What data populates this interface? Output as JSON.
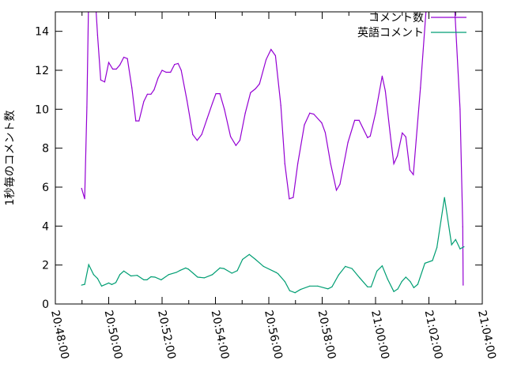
{
  "chart_data": {
    "type": "line",
    "title": "",
    "xlabel": "",
    "ylabel": "1秒毎のコメント数",
    "xlim": [
      "20:48:00",
      "21:04:00"
    ],
    "ylim": [
      0,
      15
    ],
    "x_ticks": [
      "20:48:00",
      "20:50:00",
      "20:52:00",
      "20:54:00",
      "20:56:00",
      "20:58:00",
      "21:00:00",
      "21:02:00",
      "21:04:00"
    ],
    "y_ticks": [
      0,
      2,
      4,
      6,
      8,
      10,
      12,
      14
    ],
    "grid": false,
    "legend_position": "top-right",
    "series": [
      {
        "name": "コメント数",
        "color": "#9400d3",
        "x": [
          "20:48:59",
          "20:49:06",
          "20:49:11",
          "20:49:15",
          "20:49:22",
          "20:49:29",
          "20:49:35",
          "20:49:42",
          "20:49:51",
          "20:50:00",
          "20:50:09",
          "20:50:17",
          "20:50:25",
          "20:50:34",
          "20:50:42",
          "20:50:52",
          "20:51:01",
          "20:51:08",
          "20:51:19",
          "20:51:27",
          "20:51:35",
          "20:51:42",
          "20:51:51",
          "20:52:00",
          "20:52:09",
          "20:52:19",
          "20:52:28",
          "20:52:36",
          "20:52:43",
          "20:52:56",
          "20:53:09",
          "20:53:19",
          "20:53:29",
          "20:53:41",
          "20:53:53",
          "20:54:01",
          "20:54:10",
          "20:54:20",
          "20:54:34",
          "20:54:46",
          "20:54:55",
          "20:55:07",
          "20:55:19",
          "20:55:30",
          "20:55:39",
          "20:55:54",
          "20:56:05",
          "20:56:15",
          "20:56:27",
          "20:56:36",
          "20:56:46",
          "20:56:55",
          "20:57:05",
          "20:57:20",
          "20:57:32",
          "20:57:41",
          "20:57:59",
          "20:58:07",
          "20:58:19",
          "20:58:32",
          "20:58:40",
          "20:58:58",
          "20:59:13",
          "20:59:23",
          "20:59:42",
          "20:59:48",
          "21:00:00",
          "21:00:15",
          "21:00:22",
          "21:00:33",
          "21:00:41",
          "21:00:49",
          "21:01:00",
          "21:01:08",
          "21:01:17",
          "21:01:25",
          "21:01:41",
          "21:01:54",
          "21:02:10",
          "21:02:40",
          "21:02:58",
          "21:03:10",
          "21:03:16",
          "21:03:17"
        ],
        "values": [
          5.94,
          5.4,
          10.1,
          16,
          17,
          16,
          13.8,
          11.5,
          11.4,
          12.4,
          12.06,
          12.06,
          12.27,
          12.67,
          12.6,
          11.1,
          9.4,
          9.4,
          10.4,
          10.77,
          10.77,
          11.0,
          11.6,
          12.0,
          11.9,
          11.9,
          12.3,
          12.35,
          12.0,
          10.45,
          8.7,
          8.4,
          8.7,
          9.5,
          10.3,
          10.8,
          10.8,
          10.0,
          8.6,
          8.14,
          8.4,
          9.8,
          10.85,
          11.05,
          11.3,
          12.55,
          13.07,
          12.75,
          10.2,
          7.2,
          5.4,
          5.47,
          7.2,
          9.2,
          9.8,
          9.75,
          9.3,
          8.8,
          7.2,
          5.84,
          6.15,
          8.3,
          9.43,
          9.43,
          8.54,
          8.62,
          9.8,
          11.7,
          10.93,
          8.7,
          7.2,
          7.6,
          8.78,
          8.58,
          6.88,
          6.64,
          11.1,
          15.2,
          18,
          18,
          15.2,
          10.0,
          3.97,
          0.97
        ]
      },
      {
        "name": "英語コメント",
        "color": "#009e73",
        "x": [
          "20:48:59",
          "20:49:06",
          "20:49:15",
          "20:49:26",
          "20:49:35",
          "20:49:44",
          "20:50:00",
          "20:50:07",
          "20:50:16",
          "20:50:25",
          "20:50:34",
          "20:50:50",
          "20:51:04",
          "20:51:19",
          "20:51:26",
          "20:51:35",
          "20:51:44",
          "20:51:58",
          "20:52:15",
          "20:52:32",
          "20:52:41",
          "20:52:53",
          "20:52:59",
          "20:53:20",
          "20:53:35",
          "20:53:53",
          "20:54:10",
          "20:54:19",
          "20:54:37",
          "20:54:49",
          "20:55:01",
          "20:55:16",
          "20:55:30",
          "20:55:48",
          "20:56:17",
          "20:56:21",
          "20:56:36",
          "20:56:47",
          "20:56:59",
          "20:57:11",
          "20:57:32",
          "20:57:50",
          "20:58:13",
          "20:58:22",
          "20:58:37",
          "20:58:52",
          "20:59:07",
          "20:59:24",
          "20:59:42",
          "20:59:50",
          "21:00:03",
          "21:00:15",
          "21:00:27",
          "21:00:41",
          "21:00:50",
          "21:00:59",
          "21:01:08",
          "21:01:18",
          "21:01:26",
          "21:01:35",
          "21:01:51",
          "21:02:08",
          "21:02:18",
          "21:02:35",
          "21:02:51",
          "21:03:00",
          "21:03:10",
          "21:03:19"
        ],
        "values": [
          0.97,
          1.01,
          2.02,
          1.51,
          1.31,
          0.92,
          1.08,
          1.0,
          1.1,
          1.51,
          1.69,
          1.44,
          1.47,
          1.24,
          1.24,
          1.4,
          1.38,
          1.24,
          1.51,
          1.62,
          1.73,
          1.85,
          1.79,
          1.38,
          1.34,
          1.51,
          1.85,
          1.82,
          1.58,
          1.71,
          2.29,
          2.54,
          2.29,
          1.93,
          1.61,
          1.55,
          1.15,
          0.68,
          0.58,
          0.74,
          0.92,
          0.92,
          0.78,
          0.88,
          1.49,
          1.93,
          1.82,
          1.35,
          0.88,
          0.88,
          1.69,
          1.96,
          1.28,
          0.64,
          0.77,
          1.15,
          1.38,
          1.15,
          0.84,
          1.01,
          2.09,
          2.23,
          2.9,
          5.47,
          3.04,
          3.31,
          2.83,
          2.94
        ]
      }
    ]
  }
}
